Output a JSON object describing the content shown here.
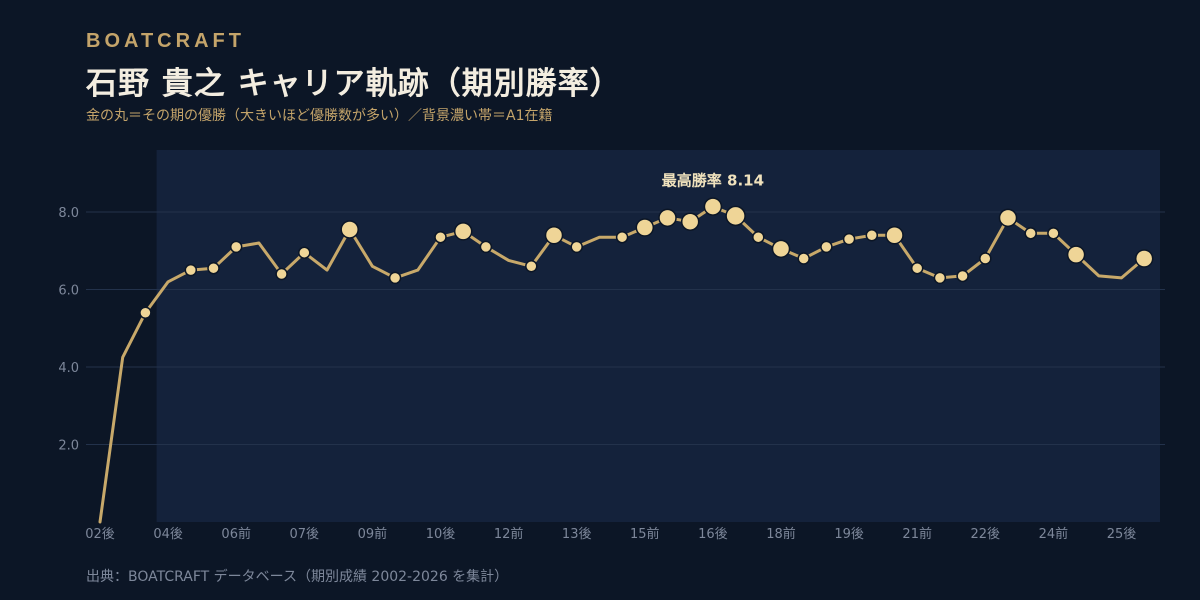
{
  "brand": "BOATCRAFT",
  "title": "石野 貴之 キャリア軌跡（期別勝率）",
  "subtitle": "金の丸＝その期の優勝（大きいほど優勝数が多い）／背景濃い帯＝A1在籍",
  "source": "出典：BOATCRAFT データベース（期別成績 2002-2026 を集計）",
  "colors": {
    "background": "#0c1626",
    "a1_band": "#14223b",
    "line": "#c8a96a",
    "marker": "#efd597",
    "text": "#e8dcc0",
    "muted": "#7d879a"
  },
  "chart_data": {
    "type": "line",
    "title": "石野 貴之 キャリア軌跡（期別勝率）",
    "ylim": [
      0,
      9.6
    ],
    "yticks": [
      2.0,
      4.0,
      6.0,
      8.0
    ],
    "grid": true,
    "xticks": [
      {
        "i": 0,
        "label": "02後"
      },
      {
        "i": 3,
        "label": "04後"
      },
      {
        "i": 6,
        "label": "06前"
      },
      {
        "i": 9,
        "label": "07後"
      },
      {
        "i": 12,
        "label": "09前"
      },
      {
        "i": 15,
        "label": "10後"
      },
      {
        "i": 18,
        "label": "12前"
      },
      {
        "i": 21,
        "label": "13後"
      },
      {
        "i": 24,
        "label": "15前"
      },
      {
        "i": 27,
        "label": "16後"
      },
      {
        "i": 30,
        "label": "18前"
      },
      {
        "i": 33,
        "label": "19後"
      },
      {
        "i": 36,
        "label": "21前"
      },
      {
        "i": 39,
        "label": "22後"
      },
      {
        "i": 42,
        "label": "24前"
      },
      {
        "i": 45,
        "label": "25後"
      }
    ],
    "series": [
      {
        "values": [
          0.0,
          4.25,
          5.4,
          6.2,
          6.5,
          6.55,
          7.1,
          7.2,
          6.4,
          6.95,
          6.5,
          7.55,
          6.6,
          6.3,
          6.5,
          7.35,
          7.5,
          7.1,
          6.75,
          6.6,
          7.4,
          7.1,
          7.35,
          7.35,
          7.6,
          7.85,
          7.75,
          8.14,
          7.9,
          7.35,
          7.05,
          6.8,
          7.1,
          7.3,
          7.4,
          7.4,
          6.55,
          6.3,
          6.35,
          6.8,
          7.85,
          7.45,
          7.45,
          6.9,
          6.35,
          6.3,
          6.8
        ],
        "wins": [
          0,
          0,
          1,
          0,
          1,
          1,
          1,
          0,
          1,
          1,
          0,
          2,
          0,
          1,
          0,
          1,
          2,
          1,
          0,
          1,
          2,
          1,
          0,
          1,
          2,
          2,
          2,
          2,
          3,
          1,
          2,
          1,
          1,
          1,
          1,
          2,
          1,
          1,
          1,
          1,
          2,
          1,
          1,
          2,
          0,
          0,
          2
        ]
      }
    ],
    "a1_from_index": 3,
    "annotation": {
      "index": 27,
      "text": "最高勝率 8.14"
    }
  }
}
